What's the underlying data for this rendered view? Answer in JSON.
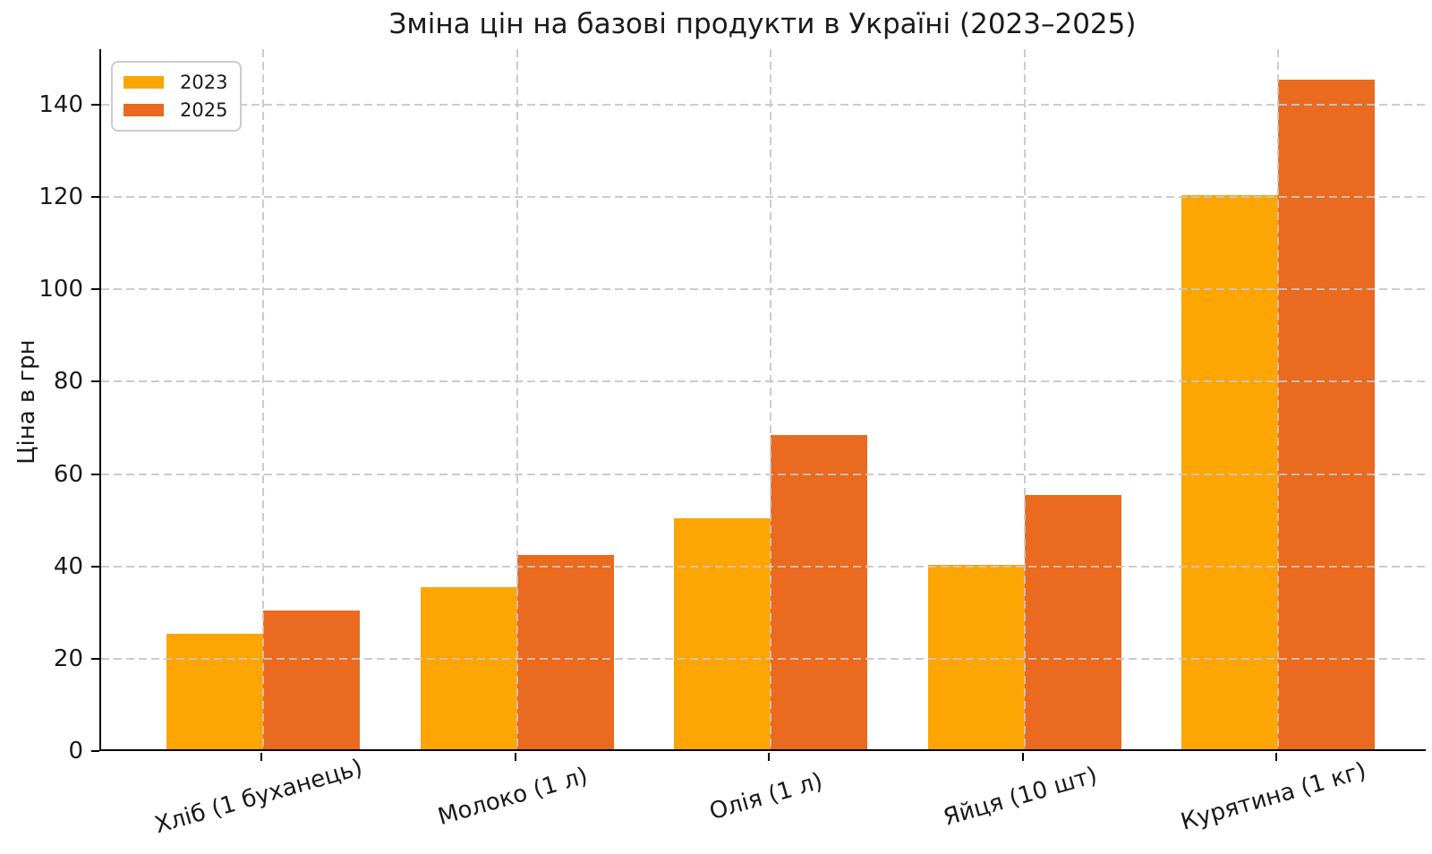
{
  "chart_data": {
    "type": "bar",
    "title": "Зміна цін на базові продукти в Україні (2023–2025)",
    "xlabel": "",
    "ylabel": "Ціна в грн",
    "categories": [
      "Хліб (1 буханець)",
      "Молоко (1 л)",
      "Олія (1 л)",
      "Яйця (10 шт)",
      "Курятина (1 кг)"
    ],
    "series": [
      {
        "name": "2023",
        "color": "#FCA503",
        "values": [
          25,
          35,
          50,
          40,
          120
        ]
      },
      {
        "name": "2025",
        "color": "#EA6A1F",
        "values": [
          30,
          42,
          68,
          55,
          145
        ]
      }
    ],
    "yticks": [
      0,
      20,
      40,
      60,
      80,
      100,
      120,
      140
    ],
    "ylim": [
      0,
      152
    ],
    "grid": true,
    "grid_style": "dashed",
    "legend_position": "upper left"
  }
}
